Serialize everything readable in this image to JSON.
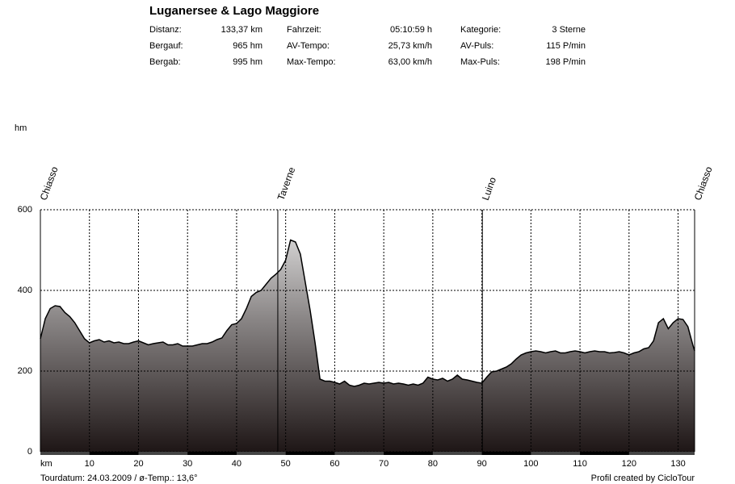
{
  "chart_data": {
    "type": "area",
    "title": "Luganersee & Lago Maggiore",
    "stats": [
      [
        "Distanz:",
        "133,37 km",
        "Fahrzeit:",
        "05:10:59 h",
        "Kategorie:",
        "3 Sterne"
      ],
      [
        "Bergauf:",
        "965 hm",
        "AV-Tempo:",
        "25,73 km/h",
        "AV-Puls:",
        "115 P/min"
      ],
      [
        "Bergab:",
        "995 hm",
        "Max-Tempo:",
        "63,00 km/h",
        "Max-Puls:",
        "198 P/min"
      ]
    ],
    "y_label": "hm",
    "x_label": "km",
    "footer_left": "Tourdatum: 24.03.2009  /  ø-Temp.: 13,6°",
    "footer_right": "Profil created by CicloTour",
    "places": [
      {
        "name": "Chiasso",
        "x": 0
      },
      {
        "name": "Taverne",
        "x": 48.4
      },
      {
        "name": "Luino",
        "x": 90.1
      },
      {
        "name": "Chiasso",
        "x": 133.37
      }
    ],
    "xlim": [
      0,
      133.37
    ],
    "ylim": [
      0,
      600
    ],
    "xticks": [
      10,
      20,
      30,
      40,
      50,
      60,
      70,
      80,
      90,
      100,
      110,
      120,
      130
    ],
    "yticks": [
      0,
      200,
      400,
      600
    ],
    "grid": true,
    "color": "#000000",
    "x": [
      0,
      1,
      2,
      3,
      4,
      5,
      6,
      7,
      8,
      9,
      10,
      11,
      12,
      13,
      14,
      15,
      16,
      17,
      18,
      19,
      20,
      21,
      22,
      23,
      24,
      25,
      26,
      27,
      28,
      29,
      30,
      31,
      32,
      33,
      34,
      35,
      36,
      37,
      38,
      39,
      40,
      41,
      42,
      43,
      44,
      45,
      46,
      47,
      48,
      49,
      50,
      51,
      52,
      53,
      54,
      55,
      56,
      57,
      58,
      59,
      60,
      61,
      62,
      63,
      64,
      65,
      66,
      67,
      68,
      69,
      70,
      71,
      72,
      73,
      74,
      75,
      76,
      77,
      78,
      79,
      80,
      81,
      82,
      83,
      84,
      85,
      86,
      87,
      88,
      89,
      90,
      91,
      92,
      93,
      94,
      95,
      96,
      97,
      98,
      99,
      100,
      101,
      102,
      103,
      104,
      105,
      106,
      107,
      108,
      109,
      110,
      111,
      112,
      113,
      114,
      115,
      116,
      117,
      118,
      119,
      120,
      121,
      122,
      123,
      124,
      125,
      126,
      127,
      128,
      129,
      130,
      131,
      132,
      133,
      133.37
    ],
    "values": [
      280,
      330,
      355,
      362,
      360,
      345,
      335,
      320,
      300,
      280,
      270,
      275,
      278,
      272,
      275,
      270,
      272,
      268,
      268,
      272,
      275,
      270,
      265,
      268,
      270,
      272,
      265,
      265,
      268,
      262,
      262,
      262,
      265,
      268,
      268,
      272,
      278,
      282,
      300,
      315,
      318,
      330,
      355,
      385,
      395,
      400,
      415,
      430,
      440,
      452,
      475,
      525,
      520,
      490,
      420,
      350,
      270,
      180,
      175,
      175,
      172,
      168,
      175,
      165,
      162,
      165,
      170,
      168,
      170,
      172,
      170,
      172,
      168,
      170,
      168,
      165,
      168,
      165,
      170,
      185,
      180,
      178,
      182,
      175,
      180,
      190,
      180,
      178,
      175,
      172,
      170,
      185,
      198,
      200,
      205,
      210,
      218,
      230,
      240,
      245,
      248,
      250,
      248,
      245,
      248,
      250,
      245,
      245,
      248,
      250,
      248,
      245,
      248,
      250,
      248,
      248,
      245,
      246,
      248,
      245,
      240,
      245,
      248,
      255,
      258,
      275,
      320,
      330,
      305,
      320,
      330,
      328,
      310,
      265,
      250
    ]
  }
}
